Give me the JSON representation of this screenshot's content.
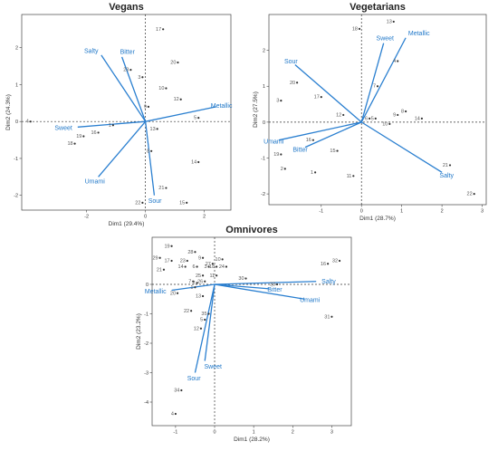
{
  "chart_data": [
    {
      "type": "scatter",
      "title": "Vegans",
      "xlabel": "Dim1 (29.4%)",
      "ylabel": "Dim2 (24.3%)",
      "xlim": [
        -4.2,
        2.9
      ],
      "ylim": [
        -2.4,
        2.9
      ],
      "xticks": [
        -2,
        0,
        2
      ],
      "yticks": [
        -2,
        -1,
        0,
        1,
        2
      ],
      "points": [
        {
          "label": "17",
          "x": 0.6,
          "y": 2.5
        },
        {
          "label": "20",
          "x": 1.1,
          "y": 1.6
        },
        {
          "label": "23",
          "x": -0.5,
          "y": 1.4
        },
        {
          "label": "3",
          "x": -0.1,
          "y": 1.2
        },
        {
          "label": "10",
          "x": 0.7,
          "y": 0.9
        },
        {
          "label": "12",
          "x": 1.2,
          "y": 0.6
        },
        {
          "label": "9",
          "x": 0.1,
          "y": 0.4
        },
        {
          "label": "5",
          "x": 1.8,
          "y": 0.1
        },
        {
          "label": "4",
          "x": -3.9,
          "y": 0.0
        },
        {
          "label": "1",
          "x": -1.1,
          "y": -0.1
        },
        {
          "label": "19",
          "x": -2.1,
          "y": -0.4
        },
        {
          "label": "16",
          "x": -1.6,
          "y": -0.3
        },
        {
          "label": "18",
          "x": -2.4,
          "y": -0.6
        },
        {
          "label": "13",
          "x": 0.4,
          "y": -0.2
        },
        {
          "label": "8",
          "x": 0.2,
          "y": -0.8
        },
        {
          "label": "14",
          "x": 1.8,
          "y": -1.1
        },
        {
          "label": "21",
          "x": 0.7,
          "y": -1.8
        },
        {
          "label": "22",
          "x": -0.1,
          "y": -2.2
        },
        {
          "label": "15",
          "x": 1.4,
          "y": -2.2
        }
      ],
      "vectors": [
        {
          "label": "Salty",
          "x": -1.5,
          "y": 1.8
        },
        {
          "label": "Bitter",
          "x": -0.8,
          "y": 1.75
        },
        {
          "label": "Metallic",
          "x": 2.4,
          "y": 0.4
        },
        {
          "label": "Sweet",
          "x": -2.3,
          "y": -0.15
        },
        {
          "label": "Umami",
          "x": -1.6,
          "y": -1.5
        },
        {
          "label": "Sour",
          "x": 0.3,
          "y": -2.0
        }
      ]
    },
    {
      "type": "scatter",
      "title": "Vegetarians",
      "xlabel": "Dim1 (28.7%)",
      "ylabel": "Dim2 (27.5%)",
      "xlim": [
        -2.3,
        3.1
      ],
      "ylim": [
        -2.3,
        3.0
      ],
      "xticks": [
        -1,
        0,
        1,
        2,
        3
      ],
      "yticks": [
        -2,
        -1,
        0,
        1,
        2
      ],
      "points": [
        {
          "label": "18",
          "x": -0.05,
          "y": 2.6
        },
        {
          "label": "13",
          "x": 0.8,
          "y": 2.8
        },
        {
          "label": "4",
          "x": 0.9,
          "y": 1.7
        },
        {
          "label": "20",
          "x": -1.6,
          "y": 1.1
        },
        {
          "label": "7",
          "x": 0.4,
          "y": 1.0
        },
        {
          "label": "17",
          "x": -1.0,
          "y": 0.7
        },
        {
          "label": "3",
          "x": -2.0,
          "y": 0.6
        },
        {
          "label": "12",
          "x": -0.45,
          "y": 0.2
        },
        {
          "label": "8",
          "x": 1.1,
          "y": 0.3
        },
        {
          "label": "9",
          "x": 0.9,
          "y": 0.2
        },
        {
          "label": "6",
          "x": 0.2,
          "y": 0.1
        },
        {
          "label": "5",
          "x": 0.35,
          "y": 0.1
        },
        {
          "label": "10",
          "x": 0.7,
          "y": -0.05
        },
        {
          "label": "14",
          "x": 1.5,
          "y": 0.1
        },
        {
          "label": "16",
          "x": -1.2,
          "y": -0.5
        },
        {
          "label": "15",
          "x": -0.6,
          "y": -0.8
        },
        {
          "label": "19",
          "x": -2.0,
          "y": -0.9
        },
        {
          "label": "2",
          "x": -1.9,
          "y": -1.3
        },
        {
          "label": "1",
          "x": -1.15,
          "y": -1.4
        },
        {
          "label": "11",
          "x": -0.2,
          "y": -1.5
        },
        {
          "label": "21",
          "x": 2.2,
          "y": -1.2
        },
        {
          "label": "22",
          "x": 2.8,
          "y": -2.0
        }
      ],
      "vectors": [
        {
          "label": "Sweet",
          "x": 0.55,
          "y": 2.2
        },
        {
          "label": "Metallic",
          "x": 1.1,
          "y": 2.35
        },
        {
          "label": "Sour",
          "x": -1.65,
          "y": 1.6
        },
        {
          "label": "Umami",
          "x": -2.05,
          "y": -0.5
        },
        {
          "label": "Bitter",
          "x": -1.4,
          "y": -0.7
        },
        {
          "label": "Salty",
          "x": 2.0,
          "y": -1.4
        }
      ]
    },
    {
      "type": "scatter",
      "title": "Omnivores",
      "xlabel": "Dim1 (28.2%)",
      "ylabel": "Dim2 (23.2%)",
      "xlim": [
        -1.6,
        3.5
      ],
      "ylim": [
        -4.8,
        1.6
      ],
      "xticks": [
        -1,
        0,
        1,
        2,
        3
      ],
      "yticks": [
        -4,
        -3,
        -2,
        -1,
        0
      ],
      "points": [
        {
          "label": "19",
          "x": -1.1,
          "y": 1.3
        },
        {
          "label": "29",
          "x": -1.4,
          "y": 0.9
        },
        {
          "label": "28",
          "x": -0.5,
          "y": 1.1
        },
        {
          "label": "17",
          "x": -1.1,
          "y": 0.8
        },
        {
          "label": "23",
          "x": -0.7,
          "y": 0.8
        },
        {
          "label": "9",
          "x": -0.3,
          "y": 0.9
        },
        {
          "label": "14",
          "x": -0.75,
          "y": 0.6
        },
        {
          "label": "6",
          "x": -0.45,
          "y": 0.6
        },
        {
          "label": "3",
          "x": -0.15,
          "y": 0.6
        },
        {
          "label": "27",
          "x": -0.05,
          "y": 0.7
        },
        {
          "label": "10",
          "x": 0.2,
          "y": 0.85
        },
        {
          "label": "18",
          "x": 0.05,
          "y": 0.6
        },
        {
          "label": "24",
          "x": 0.3,
          "y": 0.6
        },
        {
          "label": "21",
          "x": -1.3,
          "y": 0.5
        },
        {
          "label": "25",
          "x": -0.3,
          "y": 0.3
        },
        {
          "label": "11",
          "x": 0.05,
          "y": 0.3
        },
        {
          "label": "7",
          "x": -0.55,
          "y": 0.1
        },
        {
          "label": "26",
          "x": -0.25,
          "y": 0.1
        },
        {
          "label": "1",
          "x": -0.5,
          "y": -0.1
        },
        {
          "label": "2",
          "x": -0.45,
          "y": 0.05
        },
        {
          "label": "20",
          "x": -0.95,
          "y": -0.3
        },
        {
          "label": "13",
          "x": -0.3,
          "y": -0.4
        },
        {
          "label": "22",
          "x": -0.6,
          "y": -0.9
        },
        {
          "label": "30",
          "x": 0.8,
          "y": 0.2
        },
        {
          "label": "33",
          "x": 1.6,
          "y": 0.0
        },
        {
          "label": "16",
          "x": 2.9,
          "y": 0.7
        },
        {
          "label": "32",
          "x": 3.2,
          "y": 0.8
        },
        {
          "label": "31",
          "x": 3.0,
          "y": -1.1
        },
        {
          "label": "35",
          "x": -0.15,
          "y": -1.0
        },
        {
          "label": "5",
          "x": -0.25,
          "y": -1.2
        },
        {
          "label": "12",
          "x": -0.35,
          "y": -1.5
        },
        {
          "label": "34",
          "x": -0.85,
          "y": -3.6
        },
        {
          "label": "4",
          "x": -1.0,
          "y": -4.4
        }
      ],
      "vectors": [
        {
          "label": "Salty",
          "x": 2.6,
          "y": 0.1
        },
        {
          "label": "Bitter",
          "x": 1.4,
          "y": -0.15
        },
        {
          "label": "Umami",
          "x": 2.3,
          "y": -0.5
        },
        {
          "label": "Metallic",
          "x": -1.1,
          "y": -0.2
        },
        {
          "label": "Sweet",
          "x": -0.25,
          "y": -2.6
        },
        {
          "label": "Sour",
          "x": -0.5,
          "y": -3.0
        }
      ]
    }
  ]
}
